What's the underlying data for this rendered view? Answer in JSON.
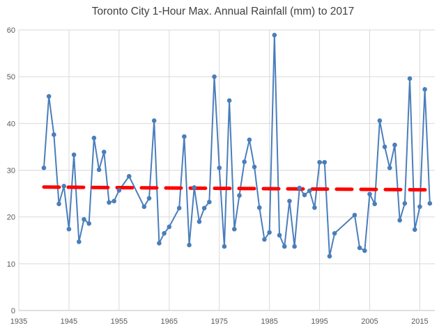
{
  "chart_data": {
    "type": "line",
    "title": "Toronto City 1-Hour Max. Annual Rainfall (mm) to 2017",
    "xlabel": "",
    "ylabel": "",
    "xlim": [
      1935,
      2018
    ],
    "ylim": [
      0,
      60
    ],
    "x_ticks": [
      1935,
      1945,
      1955,
      1965,
      1975,
      1985,
      1995,
      2005,
      2015
    ],
    "y_ticks": [
      0,
      10,
      20,
      30,
      40,
      50,
      60
    ],
    "grid": true,
    "legend": "none",
    "series": [
      {
        "color": "#4a7ebb",
        "marker": "circle",
        "x": [
          1940,
          1941,
          1942,
          1943,
          1944,
          1945,
          1946,
          1947,
          1948,
          1949,
          1950,
          1951,
          1952,
          1953,
          1954,
          1955,
          1957,
          1960,
          1961,
          1962,
          1963,
          1964,
          1965,
          1967,
          1968,
          1969,
          1970,
          1971,
          1972,
          1973,
          1974,
          1975,
          1976,
          1977,
          1978,
          1979,
          1980,
          1981,
          1982,
          1983,
          1984,
          1985,
          1986,
          1987,
          1988,
          1989,
          1990,
          1991,
          1992,
          1993,
          1994,
          1995,
          1996,
          1997,
          1998,
          2002,
          2003,
          2004,
          2005,
          2006,
          2007,
          2008,
          2009,
          2010,
          2011,
          2012,
          2013,
          2014,
          2015,
          2016,
          2017
        ],
        "y": [
          30.5,
          45.8,
          37.6,
          22.8,
          26.6,
          17.4,
          33.3,
          14.7,
          19.5,
          18.6,
          36.9,
          30.1,
          33.9,
          23.1,
          23.4,
          25.7,
          28.7,
          22.2,
          24.0,
          40.6,
          14.4,
          16.5,
          17.9,
          21.9,
          37.2,
          14.0,
          26.3,
          19.0,
          21.9,
          23.2,
          50.0,
          30.5,
          13.7,
          44.9,
          17.4,
          24.6,
          31.8,
          36.5,
          30.7,
          22.0,
          15.2,
          16.7,
          58.9,
          16.1,
          13.7,
          23.4,
          13.7,
          26.2,
          24.7,
          25.6,
          22.0,
          31.7,
          31.7,
          11.6,
          16.5,
          20.4,
          13.4,
          12.8,
          24.9,
          22.8,
          40.6,
          35.0,
          30.5,
          35.4,
          19.3,
          22.9,
          49.6,
          17.3,
          22.2,
          47.3,
          22.9
        ]
      },
      {
        "type": "trendline",
        "color": "#ff0000",
        "style": "dashed",
        "x": [
          1940,
          2017
        ],
        "y": [
          26.4,
          25.8
        ]
      }
    ]
  }
}
